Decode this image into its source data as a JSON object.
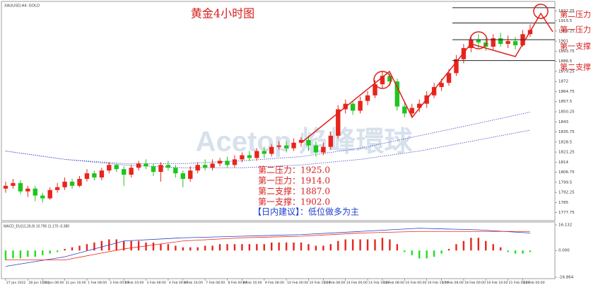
{
  "header": "XAUUSD,H4: GOLD",
  "watermark": "Acetop 焰峰環球",
  "chart_data": [
    {
      "type": "candlestick",
      "title": "黄金4小时图",
      "up_color": "#e8251c",
      "down_color": "#1fc41f",
      "open": [
        1795,
        1797,
        1799,
        1793,
        1795,
        1790,
        1788,
        1794,
        1796,
        1800,
        1797,
        1802,
        1806,
        1803,
        1808,
        1812,
        1809,
        1805,
        1810,
        1813,
        1811,
        1807,
        1812,
        1810,
        1806,
        1802,
        1808,
        1812,
        1810,
        1813,
        1815,
        1812,
        1816,
        1819,
        1817,
        1822,
        1820,
        1825,
        1826,
        1824,
        1828,
        1830,
        1826,
        1821,
        1825,
        1833,
        1852,
        1856,
        1851,
        1858,
        1862,
        1870,
        1876,
        1872,
        1854,
        1849,
        1853,
        1856,
        1862,
        1868,
        1871,
        1878,
        1888,
        1896,
        1902,
        1900,
        1897,
        1903,
        1899,
        1901,
        1898,
        1906
      ],
      "high": [
        1800,
        1802,
        1801,
        1797,
        1797,
        1792,
        1796,
        1799,
        1803,
        1802,
        1804,
        1809,
        1808,
        1810,
        1814,
        1813,
        1811,
        1812,
        1815,
        1816,
        1813,
        1814,
        1815,
        1812,
        1808,
        1811,
        1814,
        1816,
        1816,
        1817,
        1818,
        1819,
        1821,
        1822,
        1824,
        1825,
        1827,
        1829,
        1829,
        1831,
        1832,
        1833,
        1829,
        1828,
        1836,
        1855,
        1859,
        1858,
        1861,
        1865,
        1873,
        1879,
        1878,
        1874,
        1857,
        1856,
        1859,
        1865,
        1871,
        1874,
        1881,
        1891,
        1899,
        1905,
        1906,
        1903,
        1906,
        1907,
        1905,
        1904,
        1909,
        1913
      ],
      "low": [
        1792,
        1795,
        1791,
        1789,
        1786,
        1785,
        1787,
        1792,
        1794,
        1795,
        1796,
        1800,
        1801,
        1801,
        1806,
        1807,
        1797,
        1803,
        1808,
        1809,
        1804,
        1800,
        1808,
        1803,
        1796,
        1800,
        1806,
        1808,
        1808,
        1811,
        1810,
        1810,
        1814,
        1815,
        1815,
        1817,
        1818,
        1823,
        1821,
        1822,
        1825,
        1822,
        1818,
        1819,
        1823,
        1831,
        1849,
        1848,
        1849,
        1855,
        1860,
        1867,
        1869,
        1851,
        1846,
        1847,
        1850,
        1853,
        1860,
        1865,
        1869,
        1876,
        1885,
        1893,
        1896,
        1894,
        1895,
        1897,
        1896,
        1895,
        1897,
        1904
      ],
      "close": [
        1797,
        1799,
        1793,
        1795,
        1790,
        1788,
        1794,
        1796,
        1800,
        1797,
        1802,
        1806,
        1803,
        1808,
        1812,
        1809,
        1805,
        1810,
        1813,
        1811,
        1807,
        1812,
        1810,
        1806,
        1802,
        1808,
        1812,
        1810,
        1813,
        1815,
        1812,
        1816,
        1819,
        1817,
        1822,
        1820,
        1825,
        1826,
        1824,
        1828,
        1830,
        1826,
        1821,
        1825,
        1833,
        1852,
        1856,
        1851,
        1858,
        1862,
        1870,
        1876,
        1872,
        1854,
        1849,
        1853,
        1856,
        1862,
        1868,
        1871,
        1878,
        1888,
        1896,
        1902,
        1900,
        1897,
        1903,
        1899,
        1901,
        1898,
        1906,
        1909
      ],
      "ylim": [
        1773,
        1928
      ],
      "yticks": [
        1777.75,
        1785,
        1792.25,
        1799.5,
        1806.75,
        1814,
        1821.25,
        1828.5,
        1835.75,
        1843,
        1850.25,
        1857.5,
        1864.75,
        1872,
        1879.25,
        1886.5,
        1893.75,
        1901,
        1908.25,
        1915.5,
        1922.75
      ],
      "xticks": [
        {
          "value": 0,
          "label": "27 Jan 2022"
        },
        {
          "value": 3,
          "label": "28 Jan 16:00"
        },
        {
          "value": 5,
          "label": "31 Jan 08:00"
        },
        {
          "value": 8,
          "label": "31 Jan 16:00"
        },
        {
          "value": 11,
          "label": "1 Feb 08:00"
        },
        {
          "value": 14,
          "label": "2 Feb 00:00"
        },
        {
          "value": 16,
          "label": "2 Feb 16:00"
        },
        {
          "value": 19,
          "label": "3 Feb 08:00"
        },
        {
          "value": 22,
          "label": "4 Feb 00:00"
        },
        {
          "value": 24,
          "label": "4 Feb 16:00"
        },
        {
          "value": 27,
          "label": "7 Feb 08:00"
        },
        {
          "value": 30,
          "label": "8 Feb 00:00"
        },
        {
          "value": 32,
          "label": "8 Feb 16:00"
        },
        {
          "value": 35,
          "label": "9 Feb 08:00"
        },
        {
          "value": 38,
          "label": "10 Feb 00:00"
        },
        {
          "value": 41,
          "label": "10 Feb 16:00"
        },
        {
          "value": 43,
          "label": "11 Feb 08:00"
        },
        {
          "value": 46,
          "label": "14 Feb 00:00"
        },
        {
          "value": 49,
          "label": "14 Feb 16:00"
        },
        {
          "value": 51,
          "label": "15 Feb 08:00"
        },
        {
          "value": 54,
          "label": "16 Feb 00:00"
        },
        {
          "value": 57,
          "label": "16 Feb 16:00"
        },
        {
          "value": 59,
          "label": "17 Feb 08:00"
        },
        {
          "value": 62,
          "label": "18 Feb 00:00"
        },
        {
          "value": 65,
          "label": "18 Feb 16:00"
        },
        {
          "value": 68,
          "label": "21 Feb 08:00"
        },
        {
          "value": 70,
          "label": "22 Feb 00:00"
        }
      ],
      "overlays": [
        {
          "color": "#2d3fc4",
          "x": [
            0,
            8,
            16,
            24,
            32,
            40,
            48,
            56,
            64,
            71
          ],
          "values": [
            1822,
            1816,
            1813,
            1813,
            1815,
            1818,
            1824,
            1833,
            1842,
            1850
          ]
        },
        {
          "color": "#2d3fc4",
          "x": [
            0,
            8,
            16,
            24,
            32,
            40,
            48,
            56,
            64,
            71
          ],
          "values": [
            1822,
            1816,
            1812,
            1810,
            1810,
            1812,
            1816,
            1822,
            1830,
            1837
          ]
        }
      ],
      "levels": [
        {
          "label": "第二压力",
          "value": 1925
        },
        {
          "label": "第一压力",
          "value": 1914
        },
        {
          "label": "第一支撑",
          "value": 1902
        },
        {
          "label": "第二支撑",
          "value": 1887
        }
      ],
      "annotations": [
        "第二压力：1925.0",
        "第一压力：1914.0",
        "第二支撑：1887.0",
        "第一支撑：1902.0"
      ],
      "advice": "【日内建议】：低位做多为主"
    },
    {
      "type": "macd",
      "title": "MACD_EU(12,26,9) 10.795 11.170 -0.380",
      "pos_color": "#e8251c",
      "neg_color": "#22e022",
      "values": [
        -6,
        -5,
        -5,
        -4,
        -4,
        -3,
        -2,
        -1,
        1,
        2,
        3,
        4,
        5,
        6,
        7,
        7,
        6,
        6,
        6,
        5,
        5,
        4,
        4,
        3,
        2,
        2,
        2,
        3,
        3,
        4,
        4,
        4,
        4,
        4,
        4,
        4,
        5,
        5,
        5,
        5,
        5,
        4,
        3,
        3,
        4,
        6,
        7,
        7,
        7,
        7,
        7,
        8,
        7,
        4,
        -1,
        -3,
        -5,
        -5,
        -4,
        -2,
        1,
        4,
        6,
        8,
        8,
        6,
        4,
        2,
        -1,
        -2,
        -2,
        -1
      ],
      "ylim": [
        -16.864,
        16.132
      ],
      "yticks": [
        16.132,
        {
          "value": 0,
          "label": "0.000"
        },
        -16.864
      ],
      "lines": [
        {
          "color": "#2d3fc4",
          "x": [
            0,
            8,
            16,
            24,
            32,
            40,
            48,
            56,
            64,
            71
          ],
          "values": [
            -10,
            -4,
            6,
            8,
            9,
            10,
            12,
            14,
            13,
            11
          ]
        },
        {
          "color": "#e8251c",
          "x": [
            0,
            8,
            16,
            24,
            32,
            40,
            48,
            56,
            64,
            71
          ],
          "values": [
            -6,
            -6,
            1,
            6,
            8,
            9,
            11,
            12,
            12,
            12
          ]
        }
      ]
    }
  ]
}
